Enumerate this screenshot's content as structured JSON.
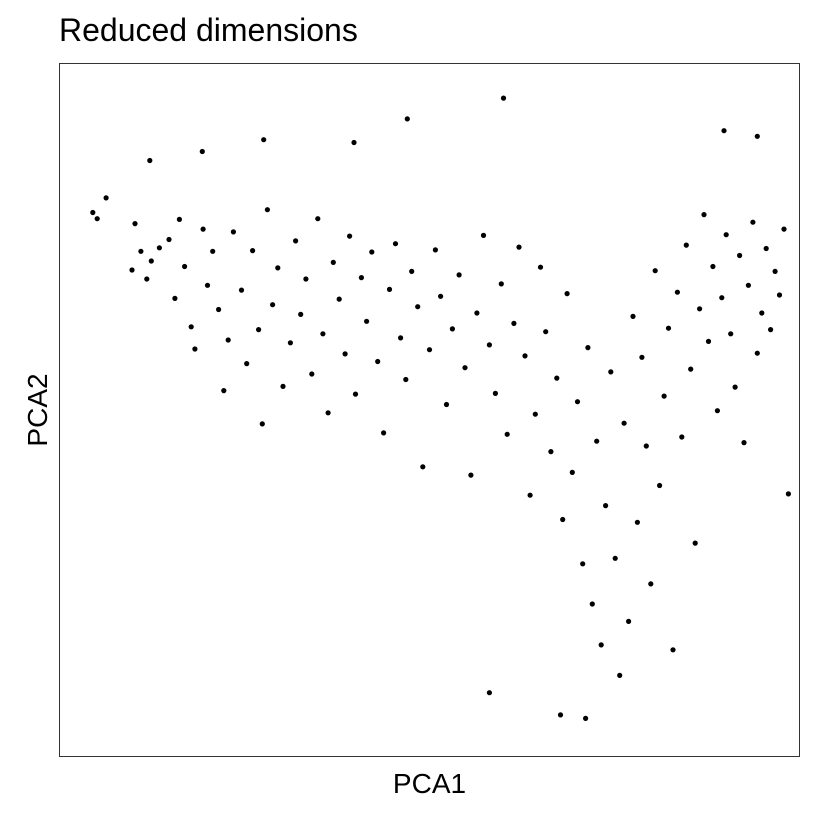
{
  "chart_data": {
    "type": "scatter",
    "title": "Reduced dimensions",
    "xlabel": "PCA1",
    "ylabel": "PCA2",
    "xlim": [
      0,
      100
    ],
    "ylim": [
      0,
      100
    ],
    "grid": false,
    "legend": "none",
    "x_ticks": false,
    "y_ticks": false,
    "point_color": "#000000",
    "series": [
      {
        "values": [
          [
            4.5,
            78.5
          ],
          [
            5.1,
            77.6
          ],
          [
            9.8,
            70.2
          ],
          [
            10.2,
            76.9
          ],
          [
            11.0,
            72.9
          ],
          [
            11.8,
            68.9
          ],
          [
            12.4,
            71.5
          ],
          [
            13.5,
            73.4
          ],
          [
            14.8,
            74.6
          ],
          [
            15.6,
            66.1
          ],
          [
            16.2,
            77.5
          ],
          [
            16.9,
            70.7
          ],
          [
            17.8,
            62.0
          ],
          [
            18.3,
            58.8
          ],
          [
            19.4,
            76.1
          ],
          [
            20.0,
            68.0
          ],
          [
            20.7,
            72.9
          ],
          [
            21.5,
            64.5
          ],
          [
            22.2,
            52.8
          ],
          [
            22.8,
            60.1
          ],
          [
            23.5,
            75.7
          ],
          [
            24.6,
            67.3
          ],
          [
            25.3,
            56.7
          ],
          [
            26.1,
            73.0
          ],
          [
            26.9,
            61.6
          ],
          [
            27.4,
            48.0
          ],
          [
            28.1,
            78.9
          ],
          [
            28.8,
            65.2
          ],
          [
            29.5,
            70.5
          ],
          [
            30.2,
            53.4
          ],
          [
            31.2,
            59.7
          ],
          [
            31.9,
            74.4
          ],
          [
            32.6,
            63.8
          ],
          [
            33.3,
            68.9
          ],
          [
            34.1,
            55.2
          ],
          [
            34.9,
            77.6
          ],
          [
            35.6,
            61.0
          ],
          [
            36.3,
            49.6
          ],
          [
            37.0,
            71.3
          ],
          [
            37.8,
            66.0
          ],
          [
            38.6,
            58.1
          ],
          [
            39.2,
            75.1
          ],
          [
            40.0,
            52.3
          ],
          [
            40.8,
            69.1
          ],
          [
            41.5,
            62.8
          ],
          [
            42.2,
            72.8
          ],
          [
            43.0,
            57.0
          ],
          [
            43.8,
            46.7
          ],
          [
            44.6,
            67.4
          ],
          [
            45.4,
            74.0
          ],
          [
            46.1,
            60.4
          ],
          [
            46.8,
            54.4
          ],
          [
            47.6,
            70.0
          ],
          [
            48.4,
            64.9
          ],
          [
            49.1,
            41.8
          ],
          [
            50.0,
            58.7
          ],
          [
            50.8,
            73.1
          ],
          [
            51.5,
            66.4
          ],
          [
            52.3,
            50.8
          ],
          [
            53.1,
            61.7
          ],
          [
            54.0,
            69.5
          ],
          [
            54.8,
            56.1
          ],
          [
            55.6,
            40.6
          ],
          [
            56.4,
            64.0
          ],
          [
            57.3,
            75.2
          ],
          [
            58.1,
            59.4
          ],
          [
            58.9,
            52.4
          ],
          [
            59.7,
            68.2
          ],
          [
            60.5,
            46.5
          ],
          [
            61.4,
            62.5
          ],
          [
            62.1,
            73.5
          ],
          [
            62.9,
            57.8
          ],
          [
            63.6,
            37.7
          ],
          [
            64.3,
            49.4
          ],
          [
            65.0,
            70.6
          ],
          [
            65.7,
            61.3
          ],
          [
            66.4,
            44.0
          ],
          [
            67.2,
            54.6
          ],
          [
            68.0,
            34.2
          ],
          [
            68.6,
            66.8
          ],
          [
            69.3,
            41.0
          ],
          [
            70.0,
            51.2
          ],
          [
            70.7,
            27.8
          ],
          [
            71.4,
            59.0
          ],
          [
            72.0,
            22.0
          ],
          [
            72.6,
            45.5
          ],
          [
            73.2,
            16.1
          ],
          [
            73.8,
            36.2
          ],
          [
            74.5,
            55.5
          ],
          [
            75.1,
            28.6
          ],
          [
            75.7,
            11.7
          ],
          [
            76.3,
            48.1
          ],
          [
            76.9,
            19.5
          ],
          [
            77.5,
            63.5
          ],
          [
            78.1,
            33.8
          ],
          [
            78.7,
            57.6
          ],
          [
            79.3,
            44.8
          ],
          [
            79.9,
            24.9
          ],
          [
            80.5,
            70.1
          ],
          [
            81.1,
            39.1
          ],
          [
            81.7,
            52.0
          ],
          [
            82.3,
            61.8
          ],
          [
            82.9,
            15.4
          ],
          [
            83.5,
            67.0
          ],
          [
            84.1,
            46.1
          ],
          [
            84.7,
            73.8
          ],
          [
            85.3,
            55.9
          ],
          [
            85.9,
            30.8
          ],
          [
            86.5,
            64.6
          ],
          [
            87.1,
            78.2
          ],
          [
            87.7,
            59.9
          ],
          [
            88.3,
            70.7
          ],
          [
            88.9,
            49.9
          ],
          [
            89.5,
            66.2
          ],
          [
            90.1,
            75.3
          ],
          [
            90.7,
            61.0
          ],
          [
            91.3,
            53.3
          ],
          [
            91.9,
            72.3
          ],
          [
            92.5,
            45.3
          ],
          [
            93.1,
            68.0
          ],
          [
            93.7,
            77.1
          ],
          [
            94.3,
            58.2
          ],
          [
            94.9,
            64.0
          ],
          [
            95.5,
            73.3
          ],
          [
            96.1,
            61.6
          ],
          [
            96.7,
            70.0
          ],
          [
            97.3,
            66.6
          ],
          [
            97.9,
            76.1
          ],
          [
            98.5,
            37.9
          ],
          [
            60.0,
            95.0
          ],
          [
            47.0,
            92.0
          ],
          [
            39.8,
            88.6
          ],
          [
            27.6,
            89.0
          ],
          [
            19.3,
            87.3
          ],
          [
            12.2,
            86.0
          ],
          [
            6.3,
            80.6
          ],
          [
            89.8,
            90.3
          ],
          [
            94.3,
            89.5
          ],
          [
            58.1,
            9.2
          ],
          [
            71.1,
            5.5
          ],
          [
            67.7,
            6.0
          ]
        ]
      }
    ]
  }
}
